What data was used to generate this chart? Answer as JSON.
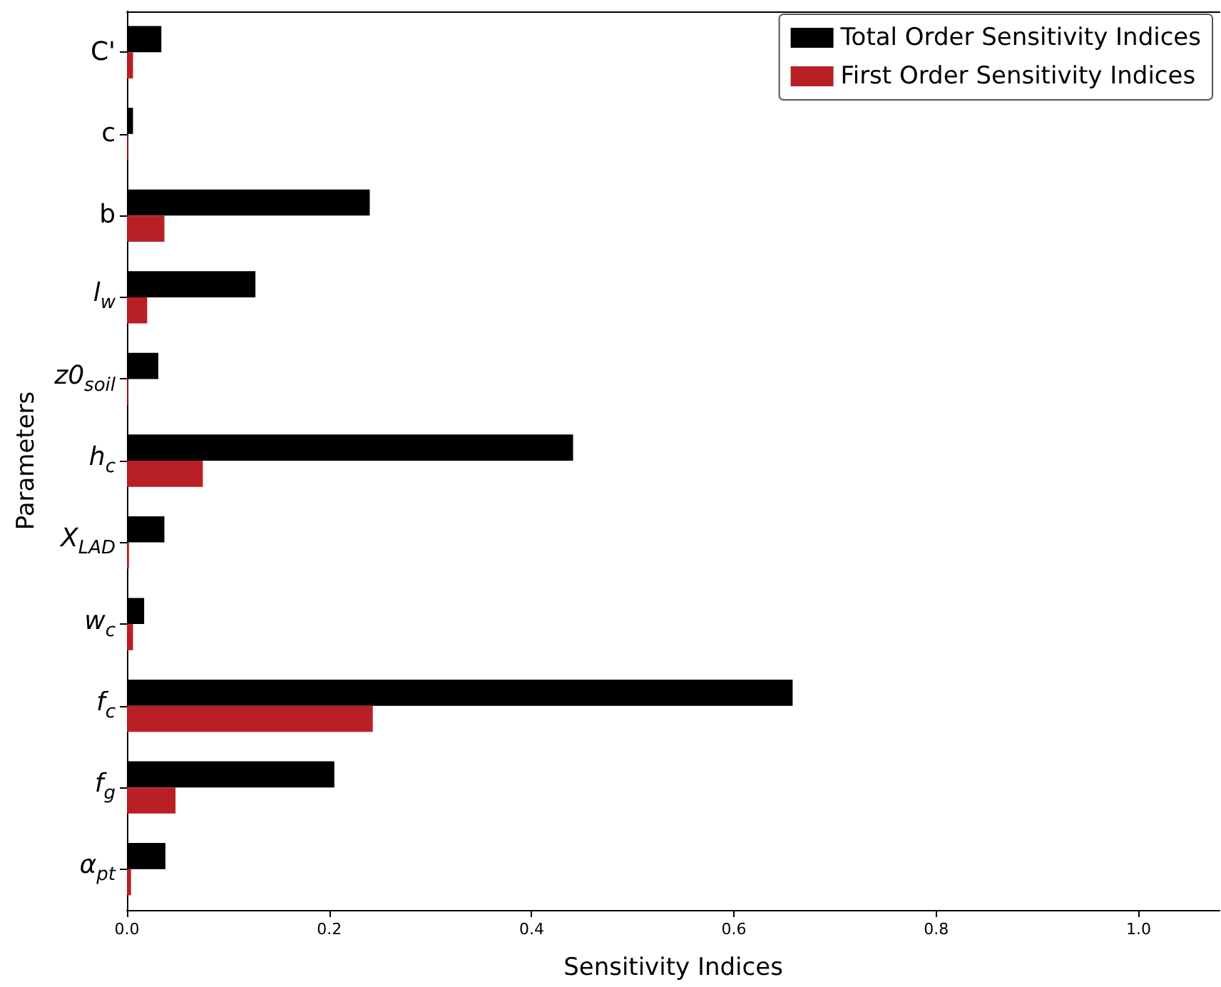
{
  "chart_data": {
    "type": "bar",
    "orientation": "horizontal",
    "xlabel": "Sensitivity Indices",
    "ylabel": "Parameters",
    "categories": [
      "C'",
      "c",
      "b",
      "l$_{w}$",
      "z0$_{soil}$",
      "h$_{c}$",
      "X$_{LAD}$",
      "w$_{c}$",
      "f$_{c}$",
      "f$_{g}$",
      "α$_{pt}$"
    ],
    "series": [
      {
        "name": "Total Order Sensitivity Indices",
        "color": "#000000",
        "values": [
          0.034,
          0.006,
          0.24,
          0.127,
          0.031,
          0.441,
          0.037,
          0.017,
          0.658,
          0.205,
          0.038
        ]
      },
      {
        "name": "First Order Sensitivity Indices",
        "color": "#b82025",
        "values": [
          0.006,
          0.001,
          0.037,
          0.02,
          0.001,
          0.075,
          0.002,
          0.006,
          0.243,
          0.048,
          0.004
        ]
      }
    ],
    "xlim": [
      0,
      1.08
    ],
    "xticks": [
      {
        "value": 0,
        "label": "0.0"
      },
      {
        "value": 0.2,
        "label": "0.2"
      },
      {
        "value": 0.4,
        "label": "0.4"
      },
      {
        "value": 0.6,
        "label": "0.6"
      },
      {
        "value": 0.8,
        "label": "0.8"
      },
      {
        "value": 1,
        "label": "1.0"
      }
    ],
    "grid": false,
    "legend": "top right"
  }
}
